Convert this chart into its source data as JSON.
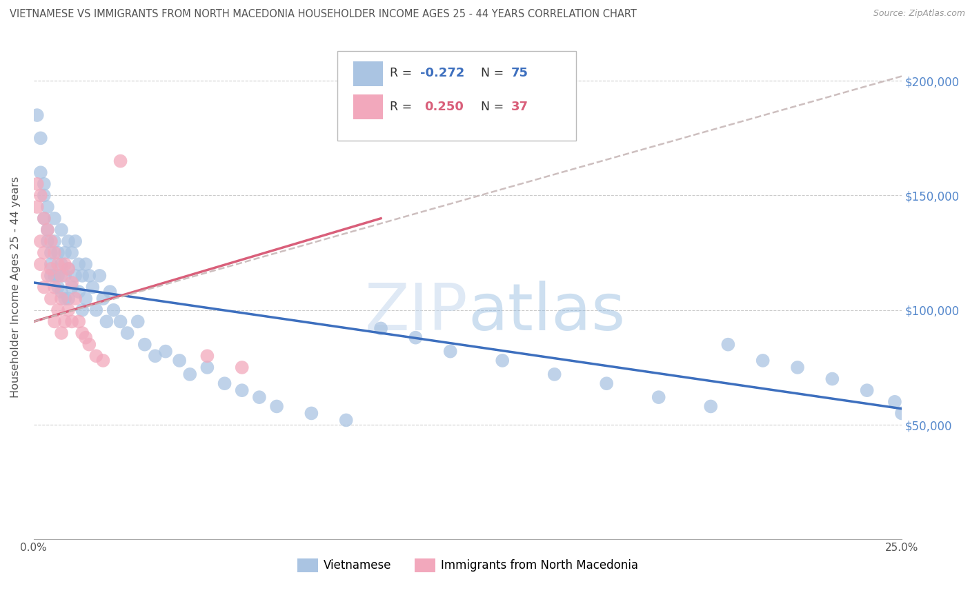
{
  "title": "VIETNAMESE VS IMMIGRANTS FROM NORTH MACEDONIA HOUSEHOLDER INCOME AGES 25 - 44 YEARS CORRELATION CHART",
  "source": "Source: ZipAtlas.com",
  "ylabel": "Householder Income Ages 25 - 44 years",
  "xlim": [
    0.0,
    0.25
  ],
  "ylim": [
    0,
    220000
  ],
  "yticks": [
    0,
    50000,
    100000,
    150000,
    200000
  ],
  "ytick_labels": [
    "",
    "$50,000",
    "$100,000",
    "$150,000",
    "$200,000"
  ],
  "xticks": [
    0.0,
    0.05,
    0.1,
    0.15,
    0.2,
    0.25
  ],
  "xtick_labels": [
    "0.0%",
    "",
    "",
    "",
    "",
    "25.0%"
  ],
  "color_blue": "#aac4e2",
  "color_pink": "#f2a8bc",
  "line_blue": "#3d6fbe",
  "line_pink": "#d95f7a",
  "line_dashed": "#c8b8b8",
  "watermark_color": "#d8e8f5",
  "background": "#ffffff",
  "grid_color": "#cccccc",
  "title_color": "#555555",
  "right_label_color": "#5588cc",
  "viet_x": [
    0.001,
    0.002,
    0.002,
    0.003,
    0.003,
    0.003,
    0.004,
    0.004,
    0.004,
    0.005,
    0.005,
    0.005,
    0.006,
    0.006,
    0.006,
    0.007,
    0.007,
    0.007,
    0.008,
    0.008,
    0.008,
    0.009,
    0.009,
    0.009,
    0.01,
    0.01,
    0.01,
    0.011,
    0.011,
    0.012,
    0.012,
    0.013,
    0.013,
    0.014,
    0.014,
    0.015,
    0.015,
    0.016,
    0.017,
    0.018,
    0.019,
    0.02,
    0.021,
    0.022,
    0.023,
    0.025,
    0.027,
    0.03,
    0.032,
    0.035,
    0.038,
    0.042,
    0.045,
    0.05,
    0.055,
    0.06,
    0.065,
    0.07,
    0.08,
    0.09,
    0.1,
    0.11,
    0.12,
    0.135,
    0.15,
    0.165,
    0.18,
    0.195,
    0.2,
    0.21,
    0.22,
    0.23,
    0.24,
    0.248,
    0.25
  ],
  "viet_y": [
    185000,
    175000,
    160000,
    155000,
    150000,
    140000,
    145000,
    135000,
    130000,
    125000,
    120000,
    115000,
    140000,
    130000,
    115000,
    125000,
    115000,
    110000,
    135000,
    120000,
    108000,
    125000,
    115000,
    105000,
    130000,
    118000,
    105000,
    125000,
    110000,
    130000,
    115000,
    120000,
    108000,
    115000,
    100000,
    120000,
    105000,
    115000,
    110000,
    100000,
    115000,
    105000,
    95000,
    108000,
    100000,
    95000,
    90000,
    95000,
    85000,
    80000,
    82000,
    78000,
    72000,
    75000,
    68000,
    65000,
    62000,
    58000,
    55000,
    52000,
    92000,
    88000,
    82000,
    78000,
    72000,
    68000,
    62000,
    58000,
    85000,
    78000,
    75000,
    70000,
    65000,
    60000,
    55000
  ],
  "mac_x": [
    0.001,
    0.001,
    0.002,
    0.002,
    0.002,
    0.003,
    0.003,
    0.003,
    0.004,
    0.004,
    0.005,
    0.005,
    0.005,
    0.006,
    0.006,
    0.006,
    0.007,
    0.007,
    0.008,
    0.008,
    0.008,
    0.009,
    0.009,
    0.01,
    0.01,
    0.011,
    0.011,
    0.012,
    0.013,
    0.014,
    0.015,
    0.016,
    0.018,
    0.02,
    0.025,
    0.05,
    0.06
  ],
  "mac_y": [
    155000,
    145000,
    150000,
    130000,
    120000,
    140000,
    125000,
    110000,
    135000,
    115000,
    130000,
    118000,
    105000,
    125000,
    110000,
    95000,
    120000,
    100000,
    115000,
    105000,
    90000,
    120000,
    95000,
    118000,
    100000,
    112000,
    95000,
    105000,
    95000,
    90000,
    88000,
    85000,
    80000,
    78000,
    165000,
    80000,
    75000
  ],
  "blue_line_x0": 0.0,
  "blue_line_y0": 112000,
  "blue_line_x1": 0.25,
  "blue_line_y1": 57000,
  "pink_line_x0": 0.0,
  "pink_line_y0": 95000,
  "pink_line_x1": 0.1,
  "pink_line_y1": 140000,
  "dashed_line_x0": 0.0,
  "dashed_line_y0": 95000,
  "dashed_line_x1": 0.25,
  "dashed_line_y1": 202000
}
